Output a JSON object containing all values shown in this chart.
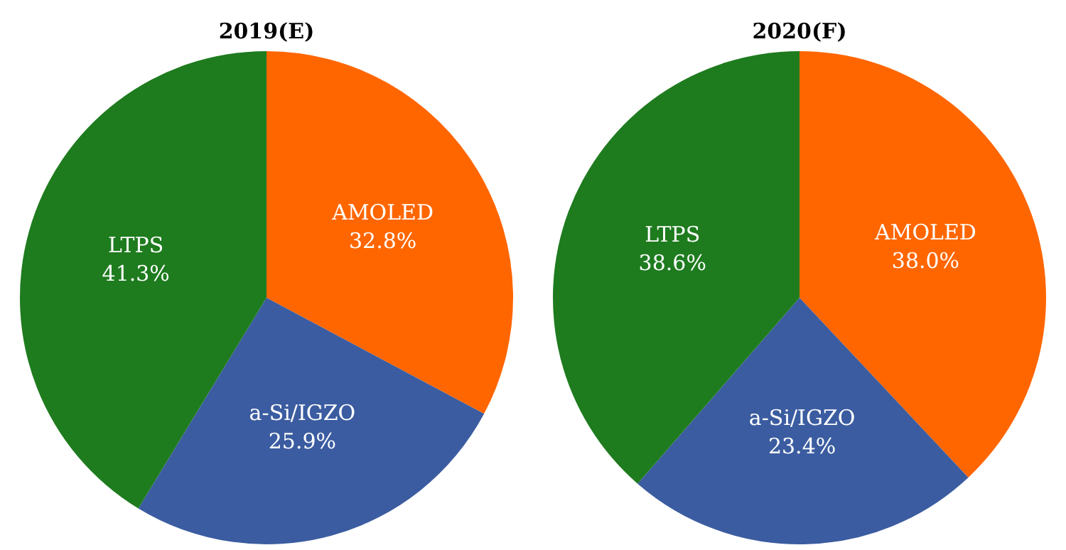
{
  "chart_data": [
    {
      "type": "pie",
      "title": "2019(E)",
      "categories": [
        "AMOLED",
        "a-Si/IGZO",
        "LTPS"
      ],
      "values": [
        32.8,
        25.9,
        41.3
      ],
      "value_labels": [
        "32.8%",
        "25.9%",
        "41.3%"
      ],
      "colors": [
        "#ff6600",
        "#3b5ca0",
        "#1e7b1e"
      ],
      "legend": false
    },
    {
      "type": "pie",
      "title": "2020(F)",
      "categories": [
        "AMOLED",
        "a-Si/IGZO",
        "LTPS"
      ],
      "values": [
        38.0,
        23.4,
        38.6
      ],
      "value_labels": [
        "38.0%",
        "23.4%",
        "38.6%"
      ],
      "colors": [
        "#ff6600",
        "#3b5ca0",
        "#1e7b1e"
      ],
      "legend": false
    }
  ]
}
